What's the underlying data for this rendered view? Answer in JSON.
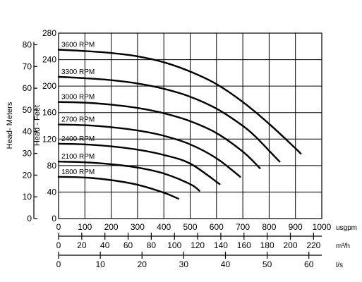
{
  "chart_data": {
    "type": "line",
    "title": "",
    "x_axes": [
      {
        "unit": "usgpm",
        "ticks": [
          0,
          100,
          200,
          300,
          400,
          500,
          600,
          700,
          800,
          900,
          1000
        ],
        "range": [
          0,
          1000
        ]
      },
      {
        "unit": "m³/h",
        "ticks": [
          0,
          20,
          40,
          60,
          80,
          100,
          120,
          140,
          160,
          180,
          200,
          220
        ],
        "range": [
          0,
          227.1
        ]
      },
      {
        "unit": "l/s",
        "ticks": [
          0,
          10,
          20,
          30,
          40,
          50,
          60
        ],
        "range": [
          0,
          63.09
        ]
      }
    ],
    "y_axes": [
      {
        "label": "Head- Meters",
        "ticks": [
          0,
          10,
          20,
          30,
          40,
          50,
          60,
          70,
          80
        ],
        "range": [
          0,
          85.34
        ]
      },
      {
        "label": "Head - Feet",
        "ticks": [
          0,
          40,
          80,
          120,
          160,
          200,
          240,
          280
        ],
        "range": [
          0,
          280
        ]
      }
    ],
    "grid": true,
    "series": [
      {
        "name": "3600 RPM",
        "x": [
          0,
          100,
          200,
          300,
          400,
          500,
          600,
          700,
          800,
          900,
          920
        ],
        "y": [
          255,
          253,
          250,
          245,
          236,
          222,
          203,
          176,
          143,
          106,
          98
        ]
      },
      {
        "name": "3300 RPM",
        "x": [
          0,
          100,
          200,
          300,
          400,
          500,
          600,
          700,
          750,
          820,
          840
        ],
        "y": [
          214,
          212,
          209,
          204,
          196,
          184,
          166,
          140,
          123,
          94,
          86
        ]
      },
      {
        "name": "3000 RPM",
        "x": [
          0,
          100,
          200,
          300,
          400,
          500,
          600,
          700,
          765
        ],
        "y": [
          176,
          175,
          172,
          167,
          159,
          147,
          129,
          101,
          76
        ]
      },
      {
        "name": "2700 RPM",
        "x": [
          0,
          100,
          200,
          300,
          400,
          500,
          600,
          690
        ],
        "y": [
          142,
          141,
          138,
          133,
          125,
          112,
          91,
          63
        ]
      },
      {
        "name": "2400 RPM",
        "x": [
          0,
          100,
          200,
          300,
          400,
          500,
          612
        ],
        "y": [
          113,
          112,
          109,
          104,
          96,
          83,
          52
        ]
      },
      {
        "name": "2100 RPM",
        "x": [
          0,
          100,
          200,
          300,
          400,
          500,
          535
        ],
        "y": [
          86,
          85,
          82,
          77,
          68,
          52,
          42
        ]
      },
      {
        "name": "1800 RPM",
        "x": [
          0,
          100,
          200,
          300,
          400,
          455
        ],
        "y": [
          63,
          62,
          58,
          51,
          39,
          30
        ]
      }
    ]
  }
}
